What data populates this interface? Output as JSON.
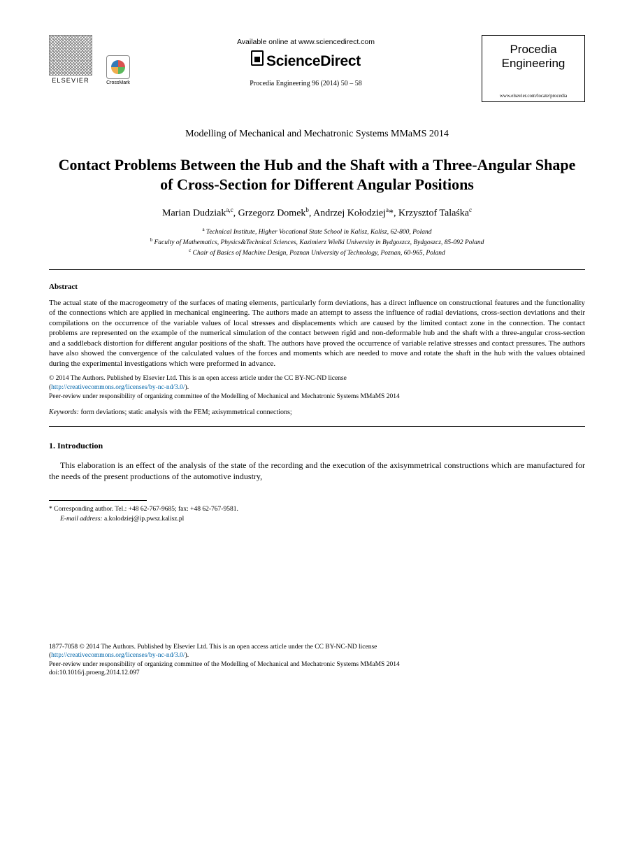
{
  "header": {
    "elsevier_label": "ELSEVIER",
    "crossmark_label": "CrossMark",
    "available_online": "Available online at www.sciencedirect.com",
    "sciencedirect": "ScienceDirect",
    "citation": "Procedia Engineering 96 (2014) 50 – 58",
    "journal_line1": "Procedia",
    "journal_line2": "Engineering",
    "journal_url": "www.elsevier.com/locate/procedia"
  },
  "conference": "Modelling of Mechanical and Mechatronic Systems MMaMS 2014",
  "title": "Contact Problems Between the Hub and the Shaft with a Three-Angular Shape of Cross-Section for Different Angular Positions",
  "authors_html": "Marian Dudziak<sup>a,c</sup>, Grzegorz Domek<sup>b</sup>, Andrzej Kołodziej<sup>a</sup>*, Krzysztof Talaśka<sup>c</sup>",
  "affiliations": {
    "a": "Technical Institute, Higher Vocational State School in Kalisz, Kalisz, 62-800, Poland",
    "b": "Faculty of Mathematics, Physics&Technical Sciences, Kazimierz Wielki University in Bydgoszcz, Bydgoszcz, 85-092 Poland",
    "c": "Chair of Basics of Machine Design, Poznan University of Technology, Poznan, 60-965, Poland"
  },
  "abstract": {
    "heading": "Abstract",
    "text": "The actual state of the macrogeometry of the surfaces of mating elements, particularly form deviations, has a direct influence on constructional features and the functionality of the connections which are applied in mechanical engineering. The authors made an attempt to assess the influence of radial deviations, cross-section deviations and their compilations on the occurrence of the variable values of local stresses and displacements which are caused by the limited contact zone in the connection. The contact problems are represented on the example of the numerical simulation of the contact between rigid and non-deformable hub and the shaft with a three-angular cross-section and a saddleback distortion for different angular positions of the shaft. The authors have proved the occurrence of variable relative stresses and contact pressures. The authors have also showed the convergence of the calculated values of the forces and moments which are needed to move and rotate the shaft in the hub with the values obtained during the experimental investigations which were preformed in advance."
  },
  "copyright": {
    "line1": "© 2014 The Authors. Published by Elsevier Ltd. This is an open access article under the CC BY-NC-ND license",
    "license_url_text": "http://creativecommons.org/licenses/by-nc-nd/3.0/",
    "peer": "Peer-review under responsibility of organizing committee of the Modelling of Mechanical and Mechatronic Systems MMaMS 2014"
  },
  "keywords": {
    "label": "Keywords:",
    "text": " form deviations; static analysis with the FEM; axisymmetrical connections;"
  },
  "section1": {
    "heading": "1. Introduction",
    "para": "This elaboration is an effect of the analysis of the state of the recording and the execution of the axisymmetrical constructions which are manufactured for the needs of the present productions of the automotive industry,"
  },
  "corresponding": {
    "star": "* Corresponding author. Tel.: +48 62-767-9685; fax: +48 62-767-9581.",
    "email_label": "E-mail address:",
    "email": " a.kolodziej@ip.pwsz.kalisz.pl"
  },
  "footer": {
    "issn_line": "1877-7058 © 2014 The Authors. Published by Elsevier Ltd. This is an open access article under the CC BY-NC-ND license",
    "license_url_text": "http://creativecommons.org/licenses/by-nc-nd/3.0/",
    "peer": "Peer-review under responsibility of organizing committee of the Modelling of Mechanical and Mechatronic Systems MMaMS 2014",
    "doi": "doi:10.1016/j.proeng.2014.12.097"
  },
  "colors": {
    "text": "#000000",
    "link": "#0066aa",
    "background": "#ffffff",
    "rule": "#000000"
  },
  "fonts": {
    "body": "Times New Roman",
    "sans": "Arial",
    "title_size_pt": 22,
    "body_size_pt": 11
  }
}
